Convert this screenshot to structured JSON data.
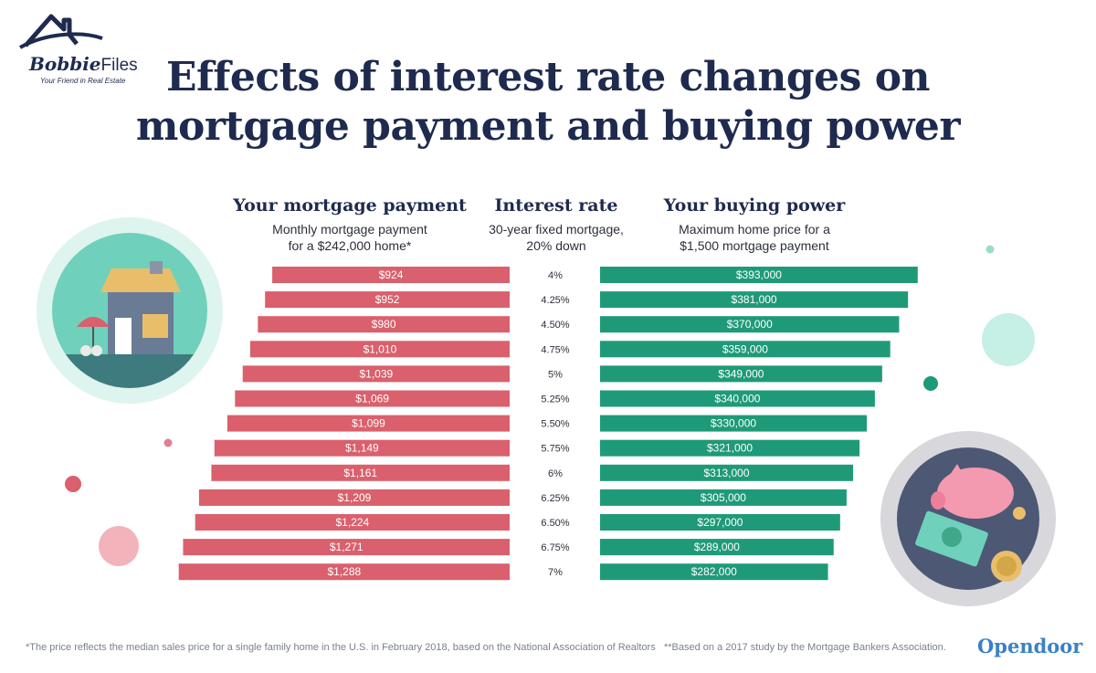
{
  "logo": {
    "name": "Bobbie",
    "files": "Files",
    "tagline": "Your Friend in Real Estate"
  },
  "title_line1": "Effects of interest rate changes on",
  "title_line2": "mortgage payment and buying power",
  "columns": {
    "payment": {
      "heading": "Your mortgage payment",
      "sub1": "Monthly mortgage payment",
      "sub2": "for a $242,000 home*"
    },
    "rate": {
      "heading": "Interest rate",
      "sub1": "30-year fixed mortgage,",
      "sub2": "20% down"
    },
    "power": {
      "heading": "Your buying power",
      "sub1": "Maximum home price for a",
      "sub2": "$1,500 mortgage payment"
    }
  },
  "colors": {
    "payment_bar": "#d9606c",
    "power_bar": "#1f9a78",
    "title": "#1f2a4f",
    "brand": "#3b82c4"
  },
  "chart_data": {
    "type": "bar",
    "categories": [
      "4%",
      "4.25%",
      "4.50%",
      "4.75%",
      "5%",
      "5.25%",
      "5.50%",
      "5.75%",
      "6%",
      "6.25%",
      "6.50%",
      "6.75%",
      "7%"
    ],
    "series": [
      {
        "name": "Your mortgage payment",
        "values": [
          924,
          952,
          980,
          1010,
          1039,
          1069,
          1099,
          1149,
          1161,
          1209,
          1224,
          1271,
          1288
        ],
        "labels": [
          "$924",
          "$952",
          "$980",
          "$1,010",
          "$1,039",
          "$1,069",
          "$1,099",
          "$1,149",
          "$1,161",
          "$1,209",
          "$1,224",
          "$1,271",
          "$1,288"
        ]
      },
      {
        "name": "Your buying power",
        "values": [
          393000,
          381000,
          370000,
          359000,
          349000,
          340000,
          330000,
          321000,
          313000,
          305000,
          297000,
          289000,
          282000
        ],
        "labels": [
          "$393,000",
          "$381,000",
          "$370,000",
          "$359,000",
          "$349,000",
          "$340,000",
          "$330,000",
          "$321,000",
          "$313,000",
          "$305,000",
          "$297,000",
          "$289,000",
          "$282,000"
        ]
      }
    ]
  },
  "footnote_left": "*The price reflects the median sales price for a single family home in the U.S. in February 2018, based on the National Association of Realtors",
  "footnote_right": "**Based on a 2017 study by the Mortgage Bankers Association.",
  "brand": "Opendoor",
  "icons": [
    "house-illustration-icon",
    "piggy-bank-illustration-icon",
    "logo-house-icon"
  ]
}
